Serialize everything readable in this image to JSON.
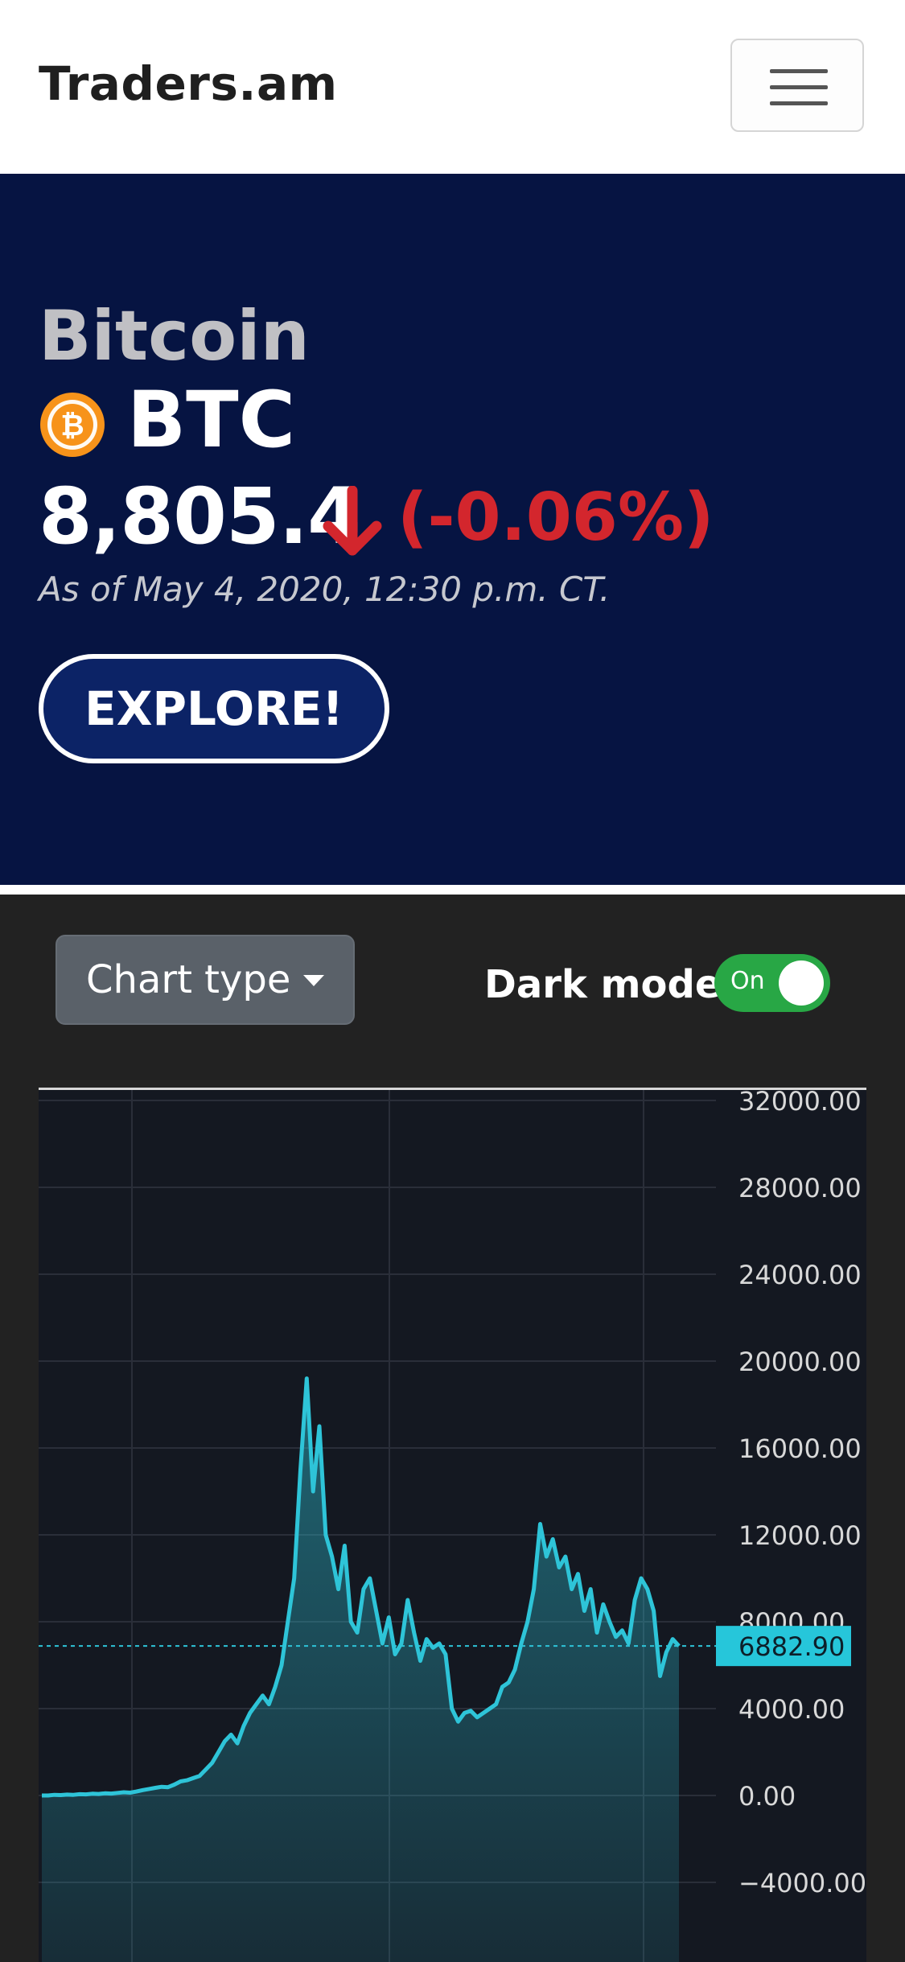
{
  "navbar": {
    "brand": "Traders.am",
    "menu_icon": "hamburger-menu-icon"
  },
  "hero": {
    "name": "Bitcoin",
    "coin_icon": "bitcoin-icon",
    "ticker": "BTC",
    "price": "8,805.4",
    "direction_icon": "arrow-down-icon",
    "change": "(-0.06%)",
    "as_of": "As of May 4, 2020, 12:30 p.m. CT.",
    "explore_label": "EXPLORE!",
    "colors": {
      "background": "#061442",
      "down": "#d3262d",
      "button": "#0c2366"
    }
  },
  "controls": {
    "chart_type_label": "Chart type",
    "dark_mode_label": "Dark mode",
    "dark_mode_state": "On",
    "dark_mode_on": true,
    "colors": {
      "toggle_on": "#28a745"
    }
  },
  "chart_data": {
    "type": "area",
    "series": [
      {
        "values": [
          0,
          0,
          30,
          20,
          40,
          30,
          60,
          50,
          80,
          70,
          100,
          90,
          120,
          150,
          130,
          180,
          250,
          300,
          350,
          400,
          380,
          500,
          650,
          700,
          800,
          900,
          1200,
          1500,
          2000,
          2500,
          2800,
          2400,
          3200,
          3800,
          4200,
          4600,
          4200,
          5000,
          6000,
          8000,
          10000,
          15000,
          19200,
          14000,
          17000,
          12000,
          11000,
          9500,
          11500,
          8000,
          7500,
          9500,
          10000,
          8500,
          7000,
          8200,
          6500,
          7000,
          9000,
          7500,
          6200,
          7200,
          6800,
          7000,
          6500,
          4000,
          3400,
          3800,
          3900,
          3600,
          3800,
          4000,
          4200,
          5000,
          5200,
          5800,
          7000,
          8000,
          9500,
          12500,
          11000,
          11800,
          10500,
          11000,
          9500,
          10200,
          8500,
          9500,
          7500,
          8800,
          8000,
          7300,
          7600,
          7000,
          9000,
          10000,
          9500,
          8500,
          5500,
          6600,
          7200,
          6882.9
        ]
      }
    ],
    "ylim": [
      -6000,
      33000
    ],
    "y_ticks": [
      "32000.00",
      "28000.00",
      "24000.00",
      "20000.00",
      "16000.00",
      "12000.00",
      "8000.00",
      "4000.00",
      "0.00",
      "−4000.00"
    ],
    "y_tick_values": [
      32000,
      28000,
      24000,
      20000,
      16000,
      12000,
      8000,
      4000,
      0,
      -4000
    ],
    "last_value": 6882.9,
    "last_value_label": "6882.90",
    "grid": true,
    "colors": {
      "line": "#2ec4d8",
      "last_label_bg": "#26c6da",
      "grid": "#2a2e39"
    }
  }
}
